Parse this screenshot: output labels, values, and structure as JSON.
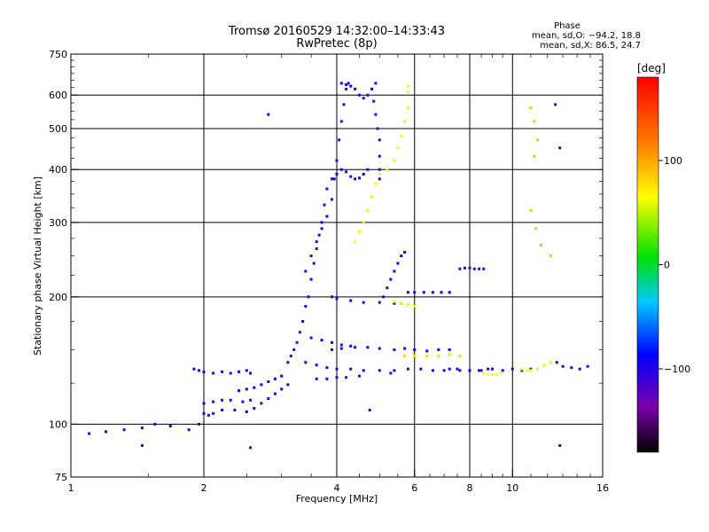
{
  "chart_data": {
    "type": "scatter",
    "title": "Tromsø 20160529 14:32:00–14:33:43",
    "subtitle": "RwPretec (8p)",
    "xlabel": "Frequency [MHz]",
    "ylabel": "Stationary phase Virtual Height [km]",
    "xscale": "log",
    "yscale": "log",
    "xlim": [
      1,
      16
    ],
    "ylim": [
      75,
      750
    ],
    "grid": true,
    "xticks": [
      1,
      2,
      4,
      6,
      8,
      10,
      16
    ],
    "yticks": [
      75,
      100,
      200,
      300,
      400,
      500,
      600,
      750
    ],
    "major_xgrid": [
      2,
      4,
      6,
      8,
      10
    ],
    "major_ygrid": [
      100,
      200,
      300,
      400,
      500,
      600
    ],
    "phase_stats": {
      "heading": "Phase",
      "line_o": "mean, sd,O: −94.2, 18.8",
      "line_x": "mean, sd,X: 86.5, 24.7"
    },
    "colorbar": {
      "unit": "[deg]",
      "range": [
        -180,
        180
      ],
      "ticks": [
        100,
        0,
        -100
      ],
      "tick_labels": [
        "100",
        "0",
        "−100"
      ]
    },
    "traces": [
      {
        "phase": -100,
        "points": [
          [
            1.1,
            95
          ],
          [
            1.2,
            96
          ],
          [
            1.32,
            97
          ],
          [
            1.45,
            98
          ],
          [
            1.55,
            100
          ],
          [
            1.68,
            99
          ],
          [
            1.85,
            97
          ],
          [
            1.95,
            100
          ]
        ]
      },
      {
        "phase": -95,
        "points": [
          [
            1.9,
            135
          ],
          [
            1.95,
            134
          ],
          [
            2.0,
            133
          ],
          [
            2.1,
            132
          ],
          [
            2.2,
            133
          ],
          [
            2.3,
            132
          ],
          [
            2.4,
            133
          ],
          [
            2.5,
            134
          ],
          [
            2.55,
            132
          ]
        ]
      },
      {
        "phase": -100,
        "points": [
          [
            2.0,
            112
          ],
          [
            2.1,
            113
          ],
          [
            2.2,
            114
          ],
          [
            2.3,
            114
          ],
          [
            2.45,
            113
          ],
          [
            2.55,
            114
          ]
        ]
      },
      {
        "phase": -95,
        "points": [
          [
            2.0,
            106
          ],
          [
            2.05,
            105
          ],
          [
            2.1,
            106
          ],
          [
            2.2,
            108
          ],
          [
            2.35,
            108
          ],
          [
            2.5,
            107
          ],
          [
            2.6,
            109
          ],
          [
            2.7,
            112
          ],
          [
            2.8,
            115
          ],
          [
            2.9,
            118
          ],
          [
            3.0,
            121
          ],
          [
            3.1,
            124
          ]
        ]
      },
      {
        "phase": -90,
        "points": [
          [
            2.4,
            120
          ],
          [
            2.5,
            121
          ],
          [
            2.6,
            122
          ],
          [
            2.7,
            124
          ],
          [
            2.8,
            126
          ],
          [
            2.9,
            128
          ],
          [
            3.0,
            130
          ]
        ]
      },
      {
        "phase": -100,
        "points": [
          [
            3.1,
            140
          ],
          [
            3.15,
            145
          ],
          [
            3.2,
            150
          ],
          [
            3.25,
            156
          ],
          [
            3.3,
            165
          ],
          [
            3.35,
            175
          ],
          [
            3.4,
            190
          ],
          [
            3.45,
            200
          ],
          [
            3.5,
            220
          ],
          [
            3.55,
            240
          ],
          [
            3.6,
            260
          ],
          [
            3.65,
            280
          ],
          [
            3.7,
            300
          ],
          [
            3.75,
            330
          ],
          [
            3.8,
            360
          ]
        ]
      },
      {
        "phase": -105,
        "points": [
          [
            3.4,
            230
          ],
          [
            3.5,
            250
          ],
          [
            3.6,
            270
          ],
          [
            3.7,
            290
          ],
          [
            3.8,
            310
          ],
          [
            3.9,
            340
          ],
          [
            3.95,
            380
          ],
          [
            4.0,
            420
          ],
          [
            4.05,
            470
          ],
          [
            4.1,
            520
          ],
          [
            4.15,
            570
          ],
          [
            4.2,
            620
          ],
          [
            4.25,
            640
          ]
        ]
      },
      {
        "phase": -100,
        "points": [
          [
            3.9,
            380
          ],
          [
            4.0,
            390
          ],
          [
            4.1,
            400
          ],
          [
            4.2,
            395
          ],
          [
            4.3,
            385
          ],
          [
            4.4,
            380
          ],
          [
            4.5,
            382
          ],
          [
            4.6,
            390
          ],
          [
            4.7,
            400
          ]
        ]
      },
      {
        "phase": -100,
        "points": [
          [
            4.1,
            640
          ],
          [
            4.2,
            635
          ],
          [
            4.3,
            630
          ],
          [
            4.4,
            620
          ],
          [
            4.5,
            600
          ],
          [
            4.6,
            590
          ],
          [
            4.7,
            600
          ],
          [
            4.8,
            620
          ],
          [
            4.9,
            640
          ]
        ]
      },
      {
        "phase": -105,
        "points": [
          [
            4.8,
            620
          ],
          [
            4.85,
            580
          ],
          [
            4.9,
            540
          ],
          [
            4.95,
            500
          ],
          [
            5.0,
            470
          ],
          [
            5.0,
            430
          ],
          [
            5.0,
            400
          ],
          [
            5.0,
            380
          ]
        ]
      },
      {
        "phase": -100,
        "points": [
          [
            3.4,
            140
          ],
          [
            3.6,
            138
          ],
          [
            3.8,
            136
          ],
          [
            4.0,
            135
          ],
          [
            4.3,
            135
          ],
          [
            4.6,
            134
          ],
          [
            5.0,
            134
          ],
          [
            5.4,
            134
          ],
          [
            5.8,
            135
          ],
          [
            6.2,
            135
          ],
          [
            6.6,
            134
          ],
          [
            7.0,
            134
          ],
          [
            7.5,
            135
          ],
          [
            8.0,
            134
          ],
          [
            8.5,
            134
          ],
          [
            9.0,
            135
          ],
          [
            9.5,
            134
          ],
          [
            10.0,
            135
          ],
          [
            10.5,
            134
          ],
          [
            11.0,
            135
          ]
        ]
      },
      {
        "phase": -110,
        "points": [
          [
            3.6,
            128
          ],
          [
            3.8,
            128
          ],
          [
            4.0,
            129
          ],
          [
            4.2,
            129
          ],
          [
            4.5,
            130
          ]
        ]
      },
      {
        "phase": -100,
        "points": [
          [
            3.9,
            200
          ],
          [
            4.0,
            198
          ],
          [
            4.3,
            196
          ],
          [
            4.6,
            194
          ],
          [
            5.0,
            194
          ],
          [
            5.4,
            193
          ],
          [
            5.6,
            193
          ]
        ]
      },
      {
        "phase": -95,
        "points": [
          [
            3.9,
            150
          ],
          [
            4.1,
            151
          ],
          [
            4.4,
            152
          ],
          [
            4.7,
            152
          ],
          [
            5.0,
            151
          ],
          [
            5.4,
            150
          ],
          [
            5.7,
            151
          ],
          [
            6.0,
            150
          ],
          [
            6.4,
            149
          ],
          [
            6.8,
            150
          ],
          [
            7.2,
            150
          ]
        ]
      },
      {
        "phase": -100,
        "points": [
          [
            3.5,
            160
          ],
          [
            3.7,
            158
          ],
          [
            3.9,
            156
          ],
          [
            4.1,
            154
          ],
          [
            4.3,
            153
          ]
        ]
      },
      {
        "phase": 80,
        "points": [
          [
            5.7,
            145
          ],
          [
            6.0,
            145
          ],
          [
            6.4,
            145
          ],
          [
            6.8,
            145
          ],
          [
            7.2,
            146
          ],
          [
            7.6,
            145
          ]
        ]
      },
      {
        "phase": 70,
        "points": [
          [
            4.4,
            270
          ],
          [
            4.5,
            285
          ],
          [
            4.6,
            300
          ],
          [
            4.7,
            320
          ],
          [
            4.8,
            345
          ],
          [
            4.9,
            370
          ],
          [
            5.0,
            390
          ],
          [
            5.2,
            400
          ],
          [
            5.4,
            420
          ],
          [
            5.5,
            450
          ],
          [
            5.6,
            480
          ],
          [
            5.7,
            520
          ],
          [
            5.8,
            560
          ],
          [
            5.8,
            610
          ],
          [
            5.8,
            630
          ]
        ]
      },
      {
        "phase": 70,
        "points": [
          [
            5.4,
            195
          ],
          [
            5.6,
            193
          ],
          [
            5.8,
            192
          ],
          [
            6.0,
            190
          ]
        ]
      },
      {
        "phase": 65,
        "points": [
          [
            8.6,
            132
          ],
          [
            8.8,
            131
          ],
          [
            9.0,
            131
          ],
          [
            9.2,
            131
          ],
          [
            9.4,
            132
          ]
        ]
      },
      {
        "phase": 60,
        "points": [
          [
            10.5,
            135
          ],
          [
            10.8,
            134
          ],
          [
            11.0,
            134
          ],
          [
            11.4,
            135
          ],
          [
            11.8,
            138
          ],
          [
            12.2,
            140
          ]
        ]
      },
      {
        "phase": -95,
        "points": [
          [
            5.8,
            205
          ],
          [
            6.0,
            205
          ],
          [
            6.3,
            205
          ],
          [
            6.6,
            205
          ],
          [
            6.9,
            205
          ],
          [
            7.2,
            205
          ]
        ]
      },
      {
        "phase": -105,
        "points": [
          [
            7.6,
            233
          ],
          [
            7.8,
            234
          ],
          [
            8.0,
            234
          ],
          [
            8.2,
            233
          ],
          [
            8.4,
            233
          ],
          [
            8.6,
            233
          ]
        ]
      },
      {
        "phase": -100,
        "points": [
          [
            7.2,
            135
          ],
          [
            7.6,
            134
          ],
          [
            8.0,
            134
          ],
          [
            8.4,
            134
          ],
          [
            8.8,
            135
          ]
        ]
      },
      {
        "phase": 90,
        "points": [
          [
            11.0,
            560
          ],
          [
            11.2,
            520
          ],
          [
            11.4,
            470
          ],
          [
            11.2,
            430
          ],
          [
            11.0,
            320
          ],
          [
            11.3,
            290
          ],
          [
            11.6,
            265
          ],
          [
            12.2,
            250
          ]
        ]
      },
      {
        "phase": -100,
        "points": [
          [
            12.5,
            570
          ],
          [
            12.8,
            450
          ],
          [
            12.6,
            140
          ],
          [
            13.0,
            137
          ],
          [
            13.6,
            136
          ],
          [
            14.2,
            135
          ],
          [
            14.8,
            137
          ]
        ]
      },
      {
        "phase": -95,
        "points": [
          [
            5.1,
            200
          ],
          [
            5.2,
            210
          ],
          [
            5.3,
            220
          ],
          [
            5.4,
            230
          ],
          [
            5.5,
            240
          ],
          [
            5.6,
            250
          ],
          [
            5.7,
            255
          ]
        ]
      },
      {
        "phase": -100,
        "points": [
          [
            2.55,
            88
          ],
          [
            1.45,
            89
          ],
          [
            4.75,
            108
          ],
          [
            5.3,
            132
          ],
          [
            2.8,
            540
          ],
          [
            12.8,
            89
          ]
        ]
      }
    ]
  }
}
